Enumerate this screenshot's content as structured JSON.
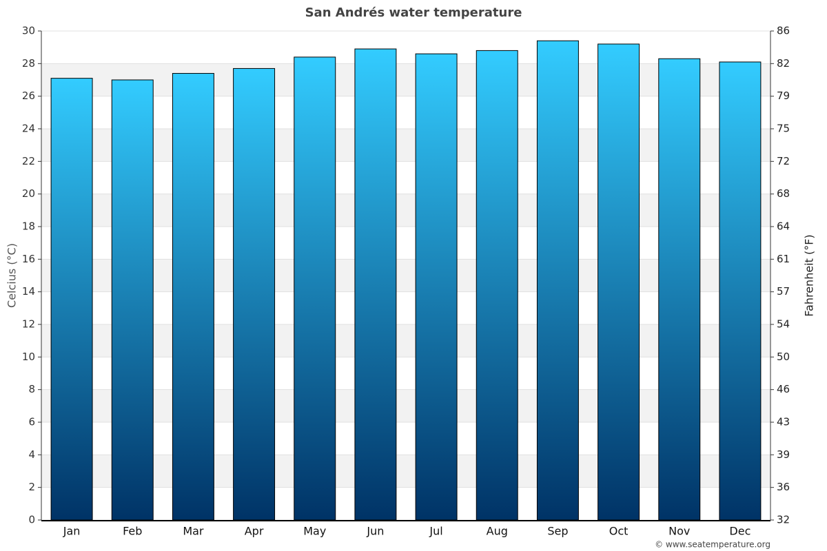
{
  "chart_data": {
    "type": "bar",
    "title": "San Andrés water temperature",
    "categories": [
      "Jan",
      "Feb",
      "Mar",
      "Apr",
      "May",
      "Jun",
      "Jul",
      "Aug",
      "Sep",
      "Oct",
      "Nov",
      "Dec"
    ],
    "values": [
      27.1,
      27.0,
      27.4,
      27.7,
      28.4,
      28.9,
      28.6,
      28.8,
      29.4,
      29.2,
      28.3,
      28.1
    ],
    "color": "#33ccff",
    "color_bottom": "#003366",
    "ylabel": "Celcius (°C)",
    "y2label": "Fahrenheit (°F)",
    "ylim": [
      0,
      30
    ],
    "yticks": [
      0,
      2,
      4,
      6,
      8,
      10,
      12,
      14,
      16,
      18,
      20,
      22,
      24,
      26,
      28,
      30
    ],
    "y2lim": [
      32,
      86
    ],
    "y2ticks": [
      32,
      {
        "value": 35.6,
        "label": "36"
      },
      {
        "value": 39.2,
        "label": "39"
      },
      {
        "value": 42.8,
        "label": "43"
      },
      {
        "value": 46.4,
        "label": "46"
      },
      50,
      {
        "value": 53.6,
        "label": "54"
      },
      {
        "value": 57.2,
        "label": "57"
      },
      {
        "value": 60.8,
        "label": "61"
      },
      {
        "value": 64.4,
        "label": "64"
      },
      68,
      {
        "value": 71.6,
        "label": "72"
      },
      {
        "value": 75.2,
        "label": "75"
      },
      {
        "value": 78.8,
        "label": "79"
      },
      {
        "value": 82.4,
        "label": "82"
      },
      86
    ],
    "grid": true,
    "credit": "© www.seatemperature.org"
  }
}
